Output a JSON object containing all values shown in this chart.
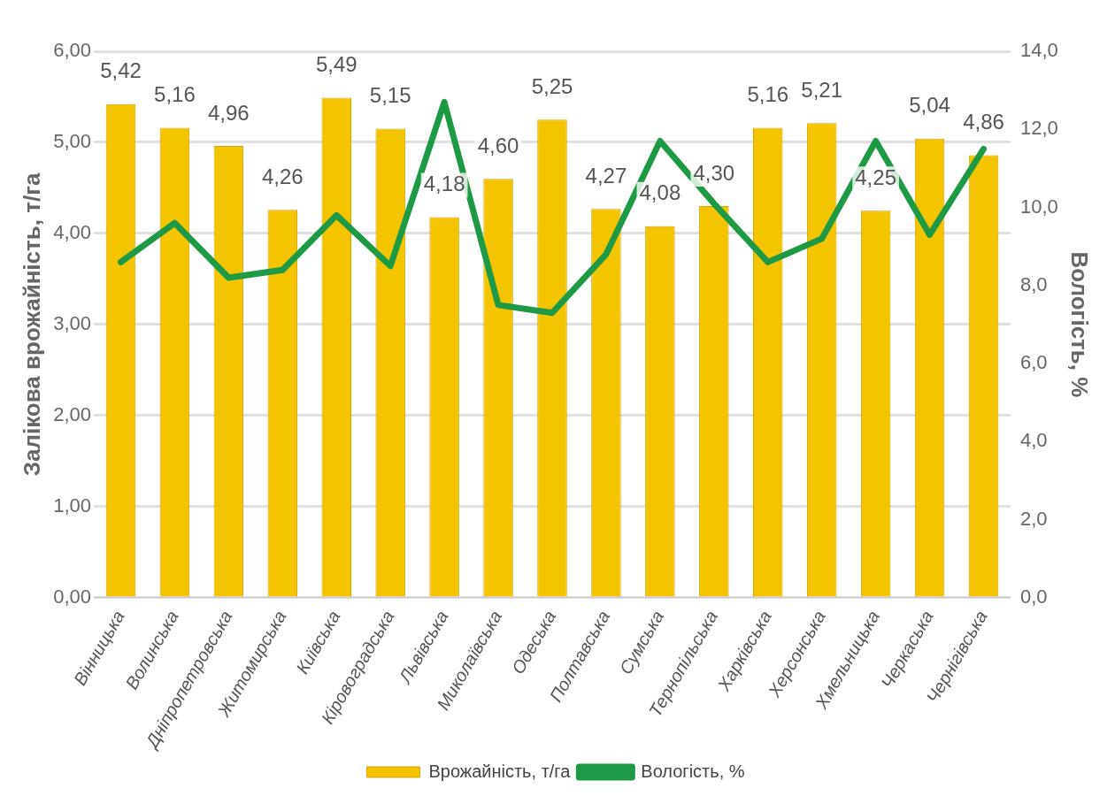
{
  "chart_data": {
    "type": "bar",
    "categories": [
      "Вінницька",
      "Волинська",
      "Дніпропетровська",
      "Житомирська",
      "Київська",
      "Кіровоградська",
      "Львівська",
      "Миколаївська",
      "Одеська",
      "Полтавська",
      "Сумська",
      "Тернопільська",
      "Харківська",
      "Херсонська",
      "Хмельницька",
      "Черкаська",
      "Чернігівська"
    ],
    "series": [
      {
        "name": "Врожайність, т/га",
        "color": "#f5c400",
        "values": [
          5.42,
          5.16,
          4.96,
          4.26,
          5.49,
          5.15,
          4.18,
          4.6,
          5.25,
          4.27,
          4.08,
          4.3,
          5.16,
          5.21,
          4.25,
          5.04,
          4.86
        ],
        "value_labels": [
          "5,42",
          "5,16",
          "4,96",
          "4,26",
          "5,49",
          "5,15",
          "4,18",
          "4,60",
          "5,25",
          "4,27",
          "4,08",
          "4,30",
          "5,16",
          "5,21",
          "4,25",
          "5,04",
          "4,86"
        ]
      },
      {
        "name": "Вологість, %",
        "type": "line",
        "axis": "y2",
        "color": "#1e9a46",
        "values": [
          8.6,
          9.6,
          8.2,
          8.4,
          9.8,
          8.5,
          12.7,
          7.5,
          7.3,
          8.8,
          11.7,
          10.1,
          8.6,
          9.2,
          11.7,
          9.3,
          11.5
        ]
      }
    ],
    "ylabel": "Залікова врожайність, т/га",
    "y2label": "Вологість, %",
    "ylim": [
      0,
      6
    ],
    "yticks": [
      {
        "value": 0,
        "label": "0,00"
      },
      {
        "value": 1,
        "label": "1,00"
      },
      {
        "value": 2,
        "label": "2,00"
      },
      {
        "value": 3,
        "label": "3,00"
      },
      {
        "value": 4,
        "label": "4,00"
      },
      {
        "value": 5,
        "label": "5,00"
      },
      {
        "value": 6,
        "label": "6,00"
      }
    ],
    "y2lim": [
      0,
      14
    ],
    "y2ticks": [
      {
        "value": 0,
        "label": "0,0"
      },
      {
        "value": 2,
        "label": "2,0"
      },
      {
        "value": 4,
        "label": "4,0"
      },
      {
        "value": 6,
        "label": "6,0"
      },
      {
        "value": 8,
        "label": "8,0"
      },
      {
        "value": 10,
        "label": "10,0"
      },
      {
        "value": 12,
        "label": "12,0"
      },
      {
        "value": 14,
        "label": "14,0"
      }
    ],
    "grid": "y",
    "legend": "bottom",
    "marker": "none",
    "line_style": "solid"
  }
}
